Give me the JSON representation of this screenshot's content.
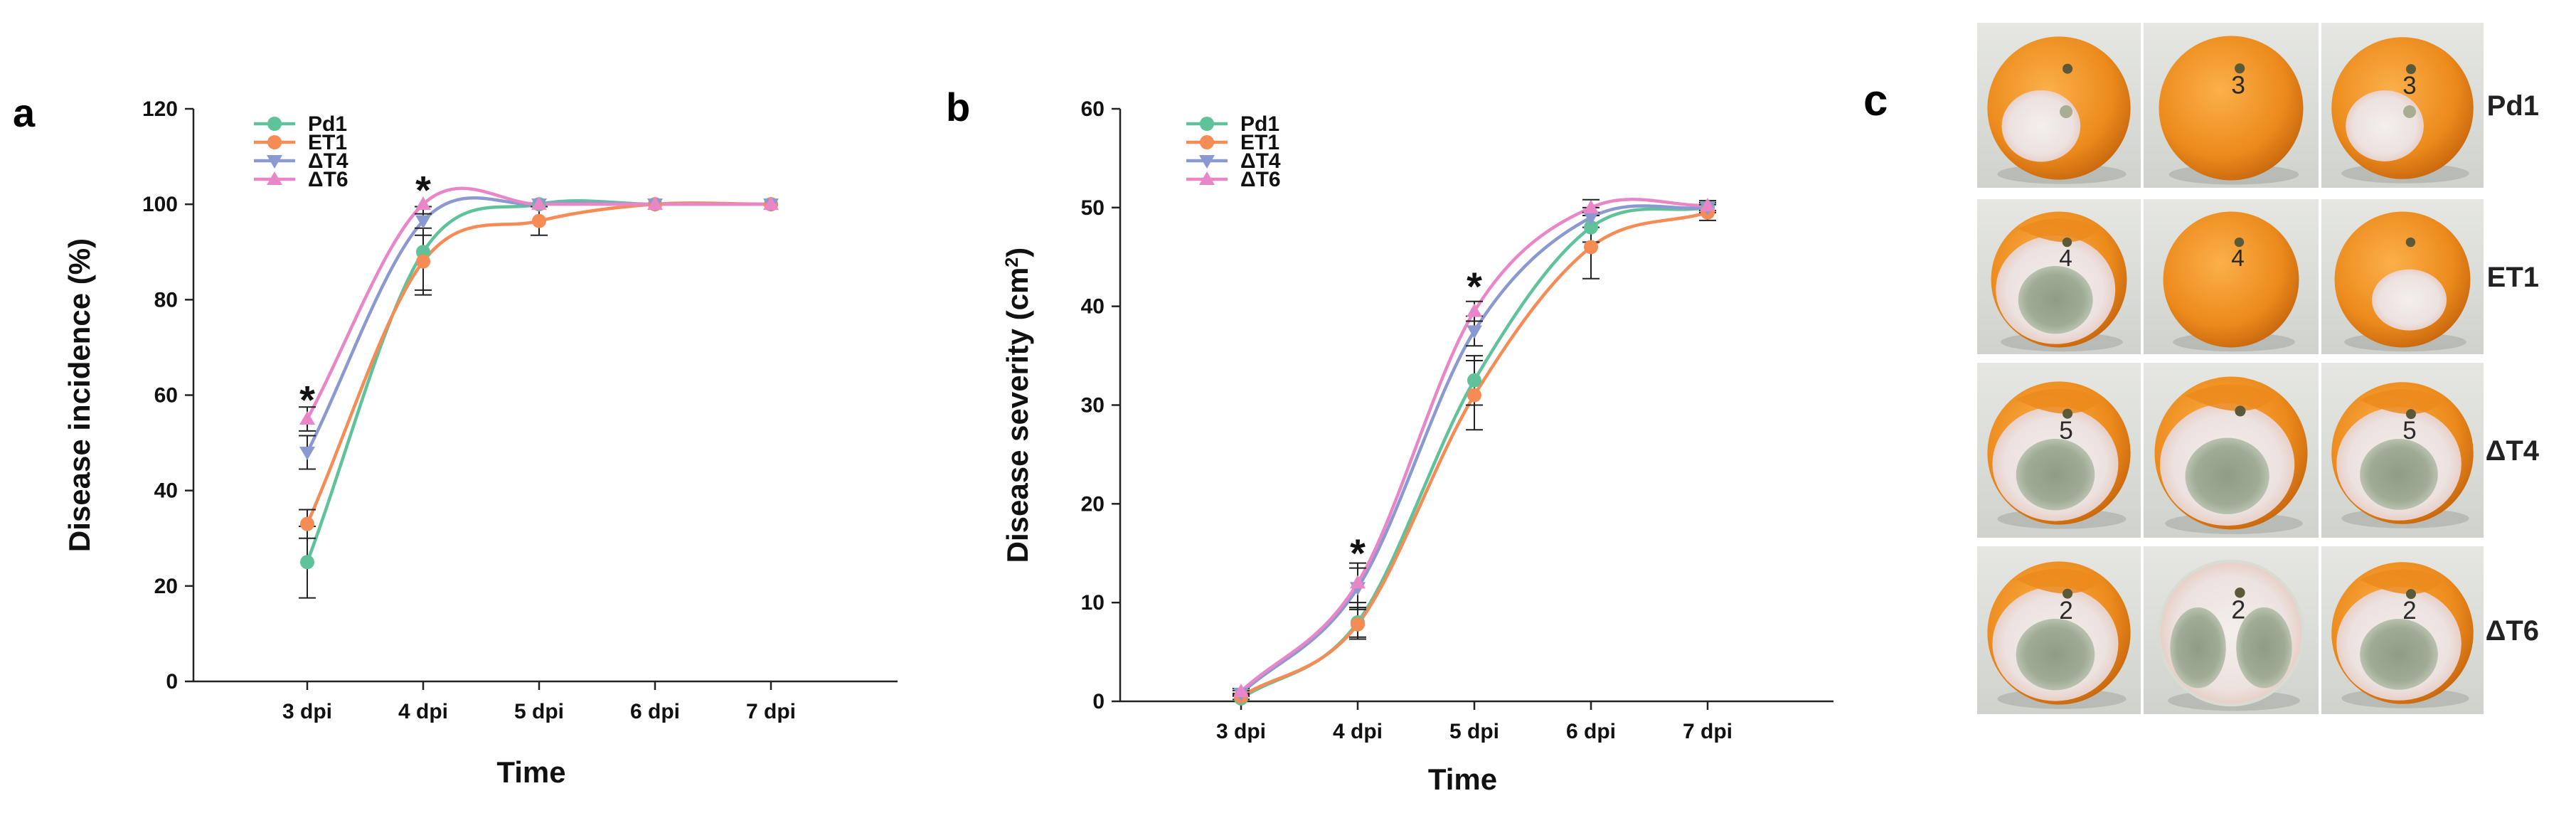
{
  "panels": {
    "a": "a",
    "b": "b",
    "c": "c"
  },
  "colors": {
    "Pd1": "#5fc29a",
    "ET1": "#f58b55",
    "dT4": "#8a9ad0",
    "dT6": "#e886c8"
  },
  "chart_data": [
    {
      "id": "a",
      "type": "line",
      "title": "",
      "xlabel": "Time",
      "ylabel": "Disease incidence (%)",
      "categories": [
        "3 dpi",
        "4 dpi",
        "5 dpi",
        "6 dpi",
        "7 dpi"
      ],
      "ylim": [
        0,
        120
      ],
      "yticks": [
        0,
        20,
        40,
        60,
        80,
        100,
        120
      ],
      "series": [
        {
          "key": "Pd1",
          "name": "Pd1",
          "marker": "circle",
          "values": [
            25,
            90,
            100,
            100,
            100
          ],
          "errors": [
            7.5,
            8,
            0,
            0,
            0
          ]
        },
        {
          "key": "ET1",
          "name": "ET1",
          "marker": "circle",
          "values": [
            33,
            88,
            96.5,
            100,
            100
          ],
          "errors": [
            3,
            7,
            3,
            0,
            0
          ]
        },
        {
          "key": "dT4",
          "name": "ΔT4",
          "marker": "triangle-down",
          "values": [
            48,
            96.5,
            100,
            100,
            100
          ],
          "errors": [
            3.5,
            3,
            0,
            0,
            0
          ]
        },
        {
          "key": "dT6",
          "name": "ΔT6",
          "marker": "triangle-up",
          "values": [
            55,
            100,
            100,
            100,
            100
          ],
          "errors": [
            2.5,
            0,
            0,
            0,
            0
          ]
        }
      ],
      "annotations": [
        {
          "text": "*",
          "category": "3 dpi",
          "y": 60
        },
        {
          "text": "*",
          "category": "4 dpi",
          "y": 104
        }
      ]
    },
    {
      "id": "b",
      "type": "line",
      "title": "",
      "xlabel": "Time",
      "ylabel": "Disease severity (cm",
      "ylabel_sup": "2",
      "ylabel_end": ")",
      "categories": [
        "3 dpi",
        "4 dpi",
        "5 dpi",
        "6 dpi",
        "7 dpi"
      ],
      "ylim": [
        0,
        60
      ],
      "yticks": [
        0,
        10,
        20,
        30,
        40,
        50,
        60
      ],
      "series": [
        {
          "key": "Pd1",
          "name": "Pd1",
          "marker": "circle",
          "values": [
            0.3,
            8,
            32.5,
            48,
            50
          ],
          "errors": [
            0.3,
            1.5,
            2.5,
            1.5,
            0.5
          ]
        },
        {
          "key": "ET1",
          "name": "ET1",
          "marker": "circle",
          "values": [
            0.5,
            7.8,
            31,
            46,
            49.5
          ],
          "errors": [
            0.3,
            1.5,
            3.5,
            3.2,
            0.8
          ]
        },
        {
          "key": "dT4",
          "name": "ΔT4",
          "marker": "triangle-down",
          "values": [
            0.8,
            11.5,
            37.5,
            49,
            50
          ],
          "errors": [
            0.3,
            2,
            1.5,
            1,
            0.5
          ]
        },
        {
          "key": "dT6",
          "name": "ΔT6",
          "marker": "triangle-up",
          "values": [
            1,
            12,
            39.5,
            50,
            50.2
          ],
          "errors": [
            0.3,
            2,
            1,
            0.8,
            0.5
          ]
        }
      ],
      "annotations": [
        {
          "text": "*",
          "category": "4 dpi",
          "y": 15.5
        },
        {
          "text": "*",
          "category": "5 dpi",
          "y": 42.5
        }
      ]
    }
  ],
  "photo_panel": {
    "rows": [
      {
        "label": "Pd1",
        "fruits": [
          {
            "mold": "spot",
            "mark": ""
          },
          {
            "mold": "none",
            "mark": "3"
          },
          {
            "mold": "spot",
            "mark": "3"
          }
        ]
      },
      {
        "label": "ET1",
        "fruits": [
          {
            "mold": "green",
            "mark": "4"
          },
          {
            "mold": "none",
            "mark": "4"
          },
          {
            "mold": "white",
            "mark": ""
          }
        ]
      },
      {
        "label": "ΔT4",
        "fruits": [
          {
            "mold": "green",
            "mark": "5"
          },
          {
            "mold": "green",
            "mark": ""
          },
          {
            "mold": "green",
            "mark": "5"
          }
        ]
      },
      {
        "label": "ΔT6",
        "fruits": [
          {
            "mold": "green",
            "mark": "2"
          },
          {
            "mold": "full",
            "mark": "2"
          },
          {
            "mold": "green",
            "mark": "2"
          }
        ]
      }
    ]
  }
}
